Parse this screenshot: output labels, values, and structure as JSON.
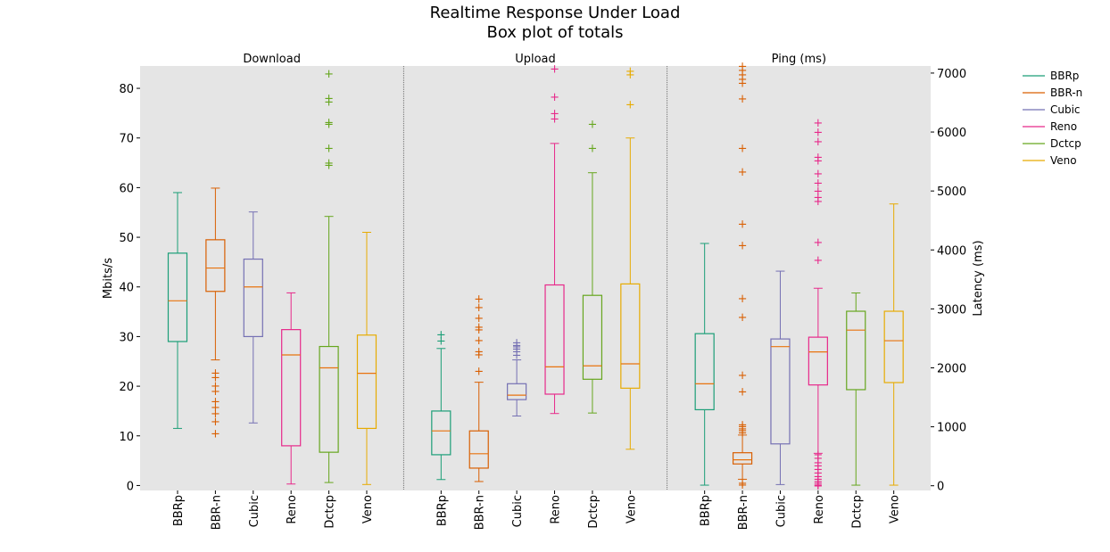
{
  "chart_data": {
    "type": "box",
    "title_line1": "Realtime Response Under Load",
    "title_line2": "Box plot of totals",
    "categories": [
      "BBRp",
      "BBR-n",
      "Cubic",
      "Reno",
      "Dctcp",
      "Veno"
    ],
    "colors": [
      "#1b9e77",
      "#d95f02",
      "#7570b3",
      "#e7298a",
      "#66a61e",
      "#e6ab02"
    ],
    "background": "#e5e5e5",
    "grid": false,
    "legend_position": "right",
    "left_axis": {
      "label": "Mbits/s",
      "ylim": [
        -1,
        84.5
      ],
      "ticks": [
        0,
        10,
        20,
        30,
        40,
        50,
        60,
        70,
        80
      ]
    },
    "right_axis": {
      "label": "Latency (ms)",
      "ylim": [
        -80,
        7120
      ],
      "ticks": [
        0,
        1000,
        2000,
        3000,
        4000,
        5000,
        6000,
        7000
      ]
    },
    "panels": [
      {
        "name": "Download",
        "axis": "left",
        "boxes": [
          {
            "category": "BBRp",
            "whisker_low": 11.5,
            "q1": 29,
            "median": 37.2,
            "q3": 46.8,
            "whisker_high": 59,
            "outliers": []
          },
          {
            "category": "BBR-n",
            "whisker_low": 25.3,
            "q1": 39.1,
            "median": 43.8,
            "q3": 49.5,
            "whisker_high": 59.9,
            "outliers": [
              22.7,
              21.8,
              20.1,
              19,
              17,
              15.8,
              14.5,
              12.9,
              10.5
            ]
          },
          {
            "category": "Cubic",
            "whisker_low": 12.6,
            "q1": 30,
            "median": 40,
            "q3": 45.6,
            "whisker_high": 55.1,
            "outliers": []
          },
          {
            "category": "Reno",
            "whisker_low": 0.3,
            "q1": 8,
            "median": 26.3,
            "q3": 31.4,
            "whisker_high": 38.8,
            "outliers": []
          },
          {
            "category": "Dctcp",
            "whisker_low": 0.6,
            "q1": 6.7,
            "median": 23.7,
            "q3": 28,
            "whisker_high": 54.2,
            "outliers": [
              64.6,
              65,
              68,
              72.8,
              73.2,
              77.3,
              78,
              83
            ]
          },
          {
            "category": "Veno",
            "whisker_low": 0.2,
            "q1": 11.5,
            "median": 22.6,
            "q3": 30.3,
            "whisker_high": 51,
            "outliers": []
          }
        ]
      },
      {
        "name": "Upload",
        "axis": "left",
        "boxes": [
          {
            "category": "BBRp",
            "whisker_low": 1.2,
            "q1": 6.2,
            "median": 11,
            "q3": 15,
            "whisker_high": 27.6,
            "outliers": [
              29.2,
              30.4
            ]
          },
          {
            "category": "BBR-n",
            "whisker_low": 0.8,
            "q1": 3.5,
            "median": 6.4,
            "q3": 11,
            "whisker_high": 20.8,
            "outliers": [
              23.1,
              26.4,
              27,
              29.3,
              31.4,
              32,
              33.8,
              35.9,
              37.6
            ]
          },
          {
            "category": "Cubic",
            "whisker_low": 14,
            "q1": 17.3,
            "median": 18.2,
            "q3": 20.5,
            "whisker_high": 25.3,
            "outliers": [
              26.3,
              27,
              27.6,
              28,
              28.3,
              28.8
            ]
          },
          {
            "category": "Reno",
            "whisker_low": 14.5,
            "q1": 18.4,
            "median": 23.9,
            "q3": 40.4,
            "whisker_high": 68.9,
            "outliers": [
              73.9,
              75,
              78.3,
              84
            ]
          },
          {
            "category": "Dctcp",
            "whisker_low": 14.6,
            "q1": 21.4,
            "median": 24.1,
            "q3": 38.3,
            "whisker_high": 63,
            "outliers": [
              68,
              72.8
            ]
          },
          {
            "category": "Veno",
            "whisker_low": 7.3,
            "q1": 19.6,
            "median": 24.5,
            "q3": 40.6,
            "whisker_high": 70,
            "outliers": [
              76.8,
              82.8,
              83.5
            ]
          }
        ]
      },
      {
        "name": "Ping (ms)",
        "axis": "right",
        "boxes": [
          {
            "category": "BBRp",
            "whisker_low": 10,
            "q1": 1290,
            "median": 1730,
            "q3": 2580,
            "whisker_high": 4110,
            "outliers": []
          },
          {
            "category": "BBR-n",
            "whisker_low": 110,
            "q1": 370,
            "median": 440,
            "q3": 560,
            "whisker_high": 860,
            "outliers": [
              20,
              50,
              900,
              940,
              970,
              1010,
              1040,
              1600,
              1880,
              2860,
              3180,
              4080,
              4440,
              5330,
              5730,
              6570,
              6830,
              6900,
              6980,
              7050,
              7120
            ]
          },
          {
            "category": "Cubic",
            "whisker_low": 20,
            "q1": 710,
            "median": 2360,
            "q3": 2490,
            "whisker_high": 3640,
            "outliers": []
          },
          {
            "category": "Reno",
            "whisker_low": 550,
            "q1": 1710,
            "median": 2270,
            "q3": 2520,
            "whisker_high": 3350,
            "outliers": [
              0,
              20,
              50,
              80,
              120,
              160,
              220,
              280,
              340,
              400,
              470,
              530,
              3830,
              4130,
              4830,
              4900,
              5000,
              5140,
              5300,
              5520,
              5580,
              5840,
              6000,
              6160
            ]
          },
          {
            "category": "Dctcp",
            "whisker_low": 10,
            "q1": 1630,
            "median": 2640,
            "q3": 2960,
            "whisker_high": 3270,
            "outliers": []
          },
          {
            "category": "Veno",
            "whisker_low": 10,
            "q1": 1750,
            "median": 2460,
            "q3": 2960,
            "whisker_high": 4780,
            "outliers": []
          }
        ]
      }
    ]
  }
}
